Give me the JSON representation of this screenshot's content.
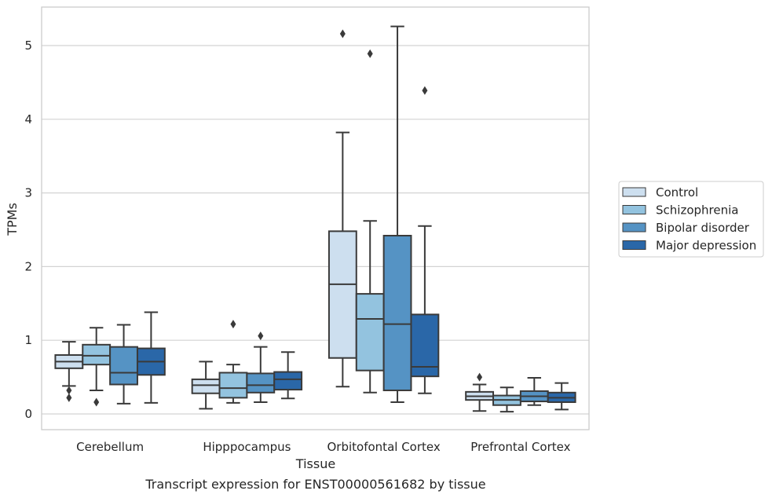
{
  "chart_data": {
    "type": "box",
    "title": "Transcript expression for ENST00000561682 by tissue",
    "xlabel": "Tissue",
    "ylabel": "TPMs",
    "ylim": [
      -0.22,
      5.53
    ],
    "yticks": [
      0,
      1,
      2,
      3,
      4,
      5
    ],
    "grid": true,
    "legend_position": "right",
    "categories": [
      "Cerebellum",
      "Hipppocampus",
      "Orbitofontal Cortex",
      "Prefrontal Cortex"
    ],
    "series": [
      {
        "name": "Control",
        "color": "#cddfef",
        "boxes": [
          {
            "whislo": 0.38,
            "q1": 0.62,
            "med": 0.71,
            "q3": 0.8,
            "whishi": 0.98,
            "fliers": [
              0.32,
              0.22
            ]
          },
          {
            "whislo": 0.07,
            "q1": 0.28,
            "med": 0.39,
            "q3": 0.47,
            "whishi": 0.71,
            "fliers": []
          },
          {
            "whislo": 0.37,
            "q1": 0.76,
            "med": 1.76,
            "q3": 2.48,
            "whishi": 3.82,
            "fliers": [
              5.16
            ]
          },
          {
            "whislo": 0.04,
            "q1": 0.19,
            "med": 0.24,
            "q3": 0.3,
            "whishi": 0.4,
            "fliers": [
              0.5
            ]
          }
        ]
      },
      {
        "name": "Schizophrenia",
        "color": "#93c3df",
        "boxes": [
          {
            "whislo": 0.32,
            "q1": 0.67,
            "med": 0.79,
            "q3": 0.94,
            "whishi": 1.17,
            "fliers": [
              0.16
            ]
          },
          {
            "whislo": 0.15,
            "q1": 0.22,
            "med": 0.35,
            "q3": 0.56,
            "whishi": 0.67,
            "fliers": [
              1.22
            ]
          },
          {
            "whislo": 0.29,
            "q1": 0.59,
            "med": 1.29,
            "q3": 1.63,
            "whishi": 2.62,
            "fliers": [
              4.89
            ]
          },
          {
            "whislo": 0.03,
            "q1": 0.12,
            "med": 0.19,
            "q3": 0.25,
            "whishi": 0.36,
            "fliers": []
          }
        ]
      },
      {
        "name": "Bipolar disorder",
        "color": "#5593c4",
        "boxes": [
          {
            "whislo": 0.14,
            "q1": 0.4,
            "med": 0.56,
            "q3": 0.91,
            "whishi": 1.21,
            "fliers": []
          },
          {
            "whislo": 0.16,
            "q1": 0.29,
            "med": 0.39,
            "q3": 0.55,
            "whishi": 0.91,
            "fliers": [
              1.06
            ]
          },
          {
            "whislo": 0.16,
            "q1": 0.32,
            "med": 1.22,
            "q3": 2.42,
            "whishi": 5.26,
            "fliers": []
          },
          {
            "whislo": 0.12,
            "q1": 0.17,
            "med": 0.24,
            "q3": 0.31,
            "whishi": 0.49,
            "fliers": []
          }
        ]
      },
      {
        "name": "Major depression",
        "color": "#2a67a8",
        "boxes": [
          {
            "whislo": 0.15,
            "q1": 0.53,
            "med": 0.71,
            "q3": 0.89,
            "whishi": 1.38,
            "fliers": []
          },
          {
            "whislo": 0.21,
            "q1": 0.33,
            "med": 0.47,
            "q3": 0.57,
            "whishi": 0.84,
            "fliers": []
          },
          {
            "whislo": 0.28,
            "q1": 0.51,
            "med": 0.64,
            "q3": 1.35,
            "whishi": 2.55,
            "fliers": [
              4.39
            ]
          },
          {
            "whislo": 0.06,
            "q1": 0.16,
            "med": 0.22,
            "q3": 0.29,
            "whishi": 0.42,
            "fliers": []
          }
        ]
      }
    ]
  }
}
